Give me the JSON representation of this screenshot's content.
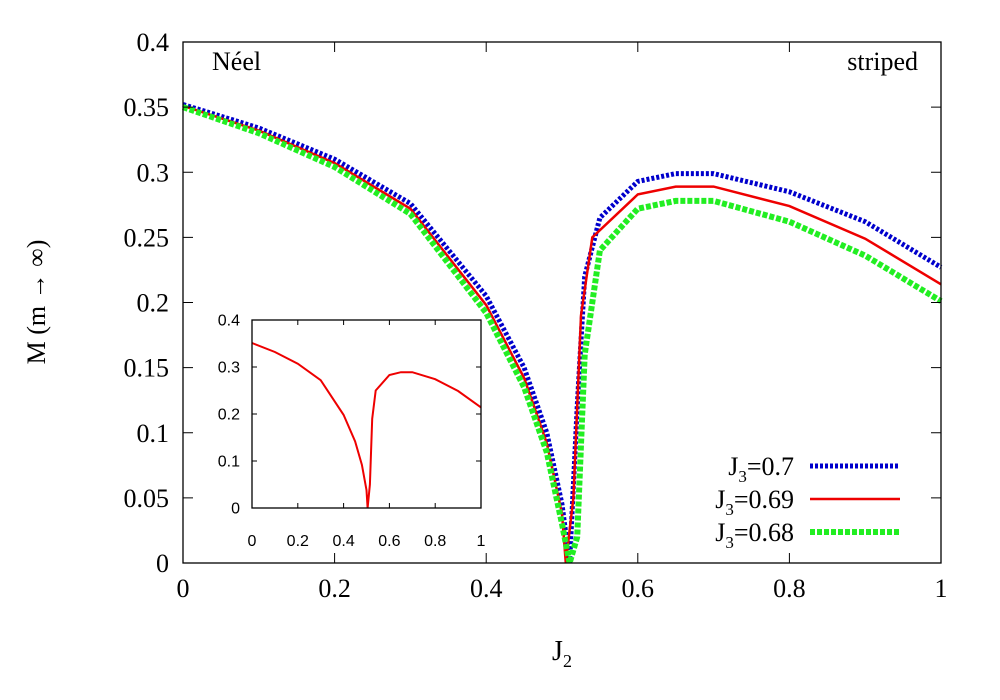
{
  "chart_data": [
    {
      "type": "line",
      "xlabel": "J",
      "xlabel_sub": "2",
      "ylabel": "M (m → ∞)",
      "xlim": [
        0,
        1
      ],
      "ylim": [
        0,
        0.4
      ],
      "x_ticks": [
        "0",
        "0.2",
        "0.4",
        "0.6",
        "0.8",
        "1"
      ],
      "y_ticks": [
        "0",
        "0.05",
        "0.1",
        "0.15",
        "0.2",
        "0.25",
        "0.3",
        "0.35",
        "0.4"
      ],
      "annotations": [
        "Néel",
        "striped"
      ],
      "legend_position": "bottom-right",
      "series": [
        {
          "name_main": "J",
          "name_sub": "3",
          "name_rest": "=0.7",
          "color": "#0000cc",
          "style": "dotted",
          "x": [
            0,
            0.1,
            0.2,
            0.3,
            0.4,
            0.45,
            0.48,
            0.5,
            0.51,
            0.52,
            0.53,
            0.55,
            0.6,
            0.65,
            0.7,
            0.8,
            0.9,
            1.0
          ],
          "y": [
            0.352,
            0.334,
            0.31,
            0.276,
            0.205,
            0.15,
            0.1,
            0.045,
            0.0,
            0.12,
            0.22,
            0.265,
            0.293,
            0.299,
            0.299,
            0.285,
            0.262,
            0.227
          ]
        },
        {
          "name_main": "J",
          "name_sub": "3",
          "name_rest": "=0.69",
          "color": "#ee0000",
          "style": "solid",
          "x": [
            0,
            0.1,
            0.2,
            0.3,
            0.4,
            0.45,
            0.48,
            0.5,
            0.505,
            0.515,
            0.525,
            0.54,
            0.6,
            0.65,
            0.7,
            0.8,
            0.9,
            1.0
          ],
          "y": [
            0.351,
            0.332,
            0.307,
            0.272,
            0.198,
            0.142,
            0.092,
            0.038,
            0.0,
            0.05,
            0.19,
            0.25,
            0.283,
            0.289,
            0.289,
            0.274,
            0.249,
            0.214
          ]
        },
        {
          "name_main": "J",
          "name_sub": "3",
          "name_rest": "=0.68",
          "color": "#22ee22",
          "style": "dashed",
          "x": [
            0,
            0.1,
            0.2,
            0.3,
            0.4,
            0.45,
            0.48,
            0.5,
            0.51,
            0.52,
            0.53,
            0.55,
            0.6,
            0.65,
            0.7,
            0.8,
            0.9,
            1.0
          ],
          "y": [
            0.35,
            0.33,
            0.304,
            0.268,
            0.192,
            0.135,
            0.085,
            0.03,
            0.0,
            0.02,
            0.16,
            0.24,
            0.272,
            0.278,
            0.278,
            0.262,
            0.236,
            0.201
          ]
        }
      ]
    },
    {
      "type": "line",
      "xlim": [
        0,
        1
      ],
      "ylim": [
        0,
        0.4
      ],
      "x_ticks": [
        "0",
        "0.2",
        "0.4",
        "0.6",
        "0.8",
        "1"
      ],
      "y_ticks": [
        "0",
        "0.1",
        "0.2",
        "0.3",
        "0.4"
      ],
      "series": [
        {
          "color": "#ee0000",
          "style": "solid",
          "x": [
            0,
            0.1,
            0.2,
            0.3,
            0.4,
            0.45,
            0.48,
            0.5,
            0.505,
            0.515,
            0.525,
            0.54,
            0.6,
            0.65,
            0.7,
            0.8,
            0.9,
            1.0
          ],
          "y": [
            0.351,
            0.332,
            0.307,
            0.272,
            0.198,
            0.142,
            0.092,
            0.038,
            0.0,
            0.05,
            0.19,
            0.25,
            0.283,
            0.289,
            0.289,
            0.274,
            0.249,
            0.214
          ]
        }
      ]
    }
  ]
}
